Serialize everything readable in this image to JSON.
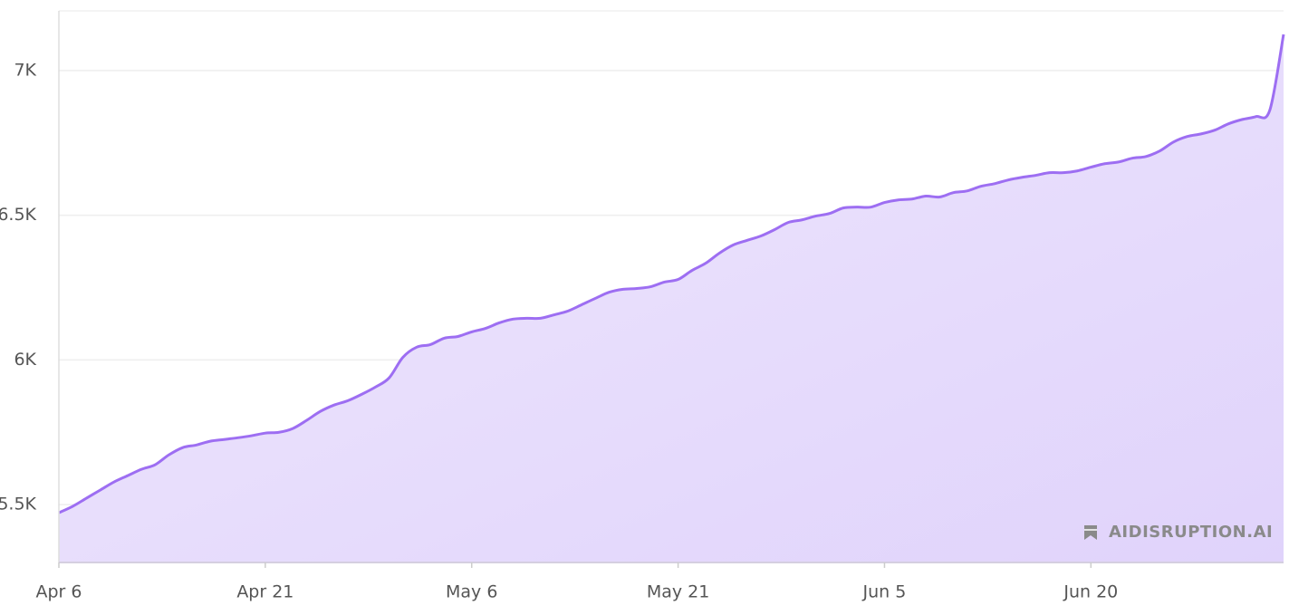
{
  "chart_data": {
    "type": "area",
    "categories": [
      "Apr 6",
      null,
      null,
      null,
      null,
      null,
      null,
      null,
      null,
      null,
      null,
      null,
      null,
      null,
      null,
      "Apr 21",
      null,
      null,
      null,
      null,
      null,
      null,
      null,
      null,
      null,
      null,
      null,
      null,
      null,
      null,
      "May 6",
      null,
      null,
      null,
      null,
      null,
      null,
      null,
      null,
      null,
      null,
      null,
      null,
      null,
      null,
      "May 21",
      null,
      null,
      null,
      null,
      null,
      null,
      null,
      null,
      null,
      null,
      null,
      null,
      null,
      null,
      "Jun 5",
      null,
      null,
      null,
      null,
      null,
      null,
      null,
      null,
      null,
      null,
      null,
      null,
      null,
      null,
      "Jun 20",
      null,
      null,
      null,
      null,
      null,
      null,
      null,
      null,
      null,
      null,
      null,
      null,
      null,
      null
    ],
    "values": [
      5472,
      5494,
      5522,
      5550,
      5578,
      5600,
      5622,
      5638,
      5672,
      5697,
      5706,
      5719,
      5725,
      5731,
      5738,
      5747,
      5750,
      5763,
      5791,
      5822,
      5844,
      5859,
      5881,
      5906,
      5938,
      6009,
      6044,
      6053,
      6075,
      6081,
      6097,
      6109,
      6128,
      6141,
      6144,
      6144,
      6156,
      6169,
      6191,
      6213,
      6234,
      6244,
      6247,
      6253,
      6269,
      6278,
      6309,
      6334,
      6369,
      6397,
      6413,
      6428,
      6450,
      6475,
      6484,
      6497,
      6506,
      6525,
      6528,
      6528,
      6544,
      6553,
      6556,
      6566,
      6563,
      6578,
      6584,
      6600,
      6609,
      6622,
      6631,
      6638,
      6647,
      6647,
      6653,
      6666,
      6678,
      6684,
      6697,
      6703,
      6722,
      6753,
      6772,
      6781,
      6794,
      6816,
      6831,
      6841,
      6863,
      7125
    ],
    "color": "#9d6ef2",
    "ylim": [
      5300,
      7200
    ],
    "yticks": [
      {
        "value": 5500,
        "label": "5.5K"
      },
      {
        "value": 6000,
        "label": "6K"
      },
      {
        "value": 6500,
        "label": "6.5K"
      },
      {
        "value": 7000,
        "label": "7K"
      }
    ],
    "grid": true,
    "annotation": "AIDISRUPTION.AI"
  }
}
